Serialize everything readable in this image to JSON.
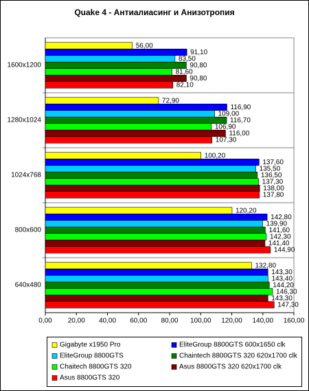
{
  "chart_data": {
    "type": "hbar",
    "title": "Quake 4 - Антиалиасинг и Анизотропия",
    "categories": [
      "1600x1200",
      "1280x1024",
      "1024x768",
      "800x600",
      "640x480"
    ],
    "series": [
      {
        "name": "Gigabyte x1950 Pro",
        "color": "#ffff00",
        "values": [
          56,
          72.9,
          100.2,
          120.2,
          132.8
        ],
        "value_labels": [
          "56,00",
          "72,90",
          "100,20",
          "120,20",
          "132,80"
        ]
      },
      {
        "name": "EliteGroup 8800GTS 600x1650 clk",
        "color": "#0000ff",
        "values": [
          91.1,
          116.9,
          137.6,
          142.8,
          143.3
        ],
        "value_labels": [
          "91,10",
          "116,90",
          "137,60",
          "142,80",
          "143,30"
        ]
      },
      {
        "name": "EliteGroup 8800GTS",
        "color": "#00ccff",
        "values": [
          83.5,
          109,
          135.5,
          139.9,
          143.4
        ],
        "value_labels": [
          "83,50",
          "109,00",
          "135,50",
          "139,90",
          "143,40"
        ]
      },
      {
        "name": "Chaintech 8800GTS 320 620x1700 clk",
        "color": "#008000",
        "values": [
          90.8,
          116.7,
          136.5,
          141.6,
          144.2
        ],
        "value_labels": [
          "90,80",
          "116,70",
          "136,50",
          "141,60",
          "144,20"
        ]
      },
      {
        "name": "Chaitech 8800GTS 320",
        "color": "#00ff00",
        "values": [
          81.6,
          106.9,
          137.3,
          142.3,
          146.3
        ],
        "value_labels": [
          "81,60",
          "106,90",
          "137,30",
          "142,30",
          "146,30"
        ]
      },
      {
        "name": "Asus 8800GTS 320 620x1700 clk",
        "color": "#800000",
        "values": [
          90.8,
          116,
          138,
          141.4,
          143.3
        ],
        "value_labels": [
          "90,80",
          "116,00",
          "138,00",
          "141,40",
          "143,30"
        ]
      },
      {
        "name": "Asus 8800GTS 320",
        "color": "#ff0000",
        "values": [
          82.1,
          107.3,
          137.8,
          144.9,
          147.3
        ],
        "value_labels": [
          "82,10",
          "107,30",
          "137,80",
          "144,90",
          "147,30"
        ]
      }
    ],
    "xlim": [
      0,
      160
    ],
    "xticks": [
      {
        "value": 0,
        "label": "0,00"
      },
      {
        "value": 20,
        "label": "20,00"
      },
      {
        "value": 40,
        "label": "40,00"
      },
      {
        "value": 60,
        "label": "60,00"
      },
      {
        "value": 80,
        "label": "80,00"
      },
      {
        "value": 100,
        "label": "100,00"
      },
      {
        "value": 120,
        "label": "120,00"
      },
      {
        "value": 140,
        "label": "140,00"
      },
      {
        "value": 160,
        "label": "160,00"
      }
    ]
  }
}
